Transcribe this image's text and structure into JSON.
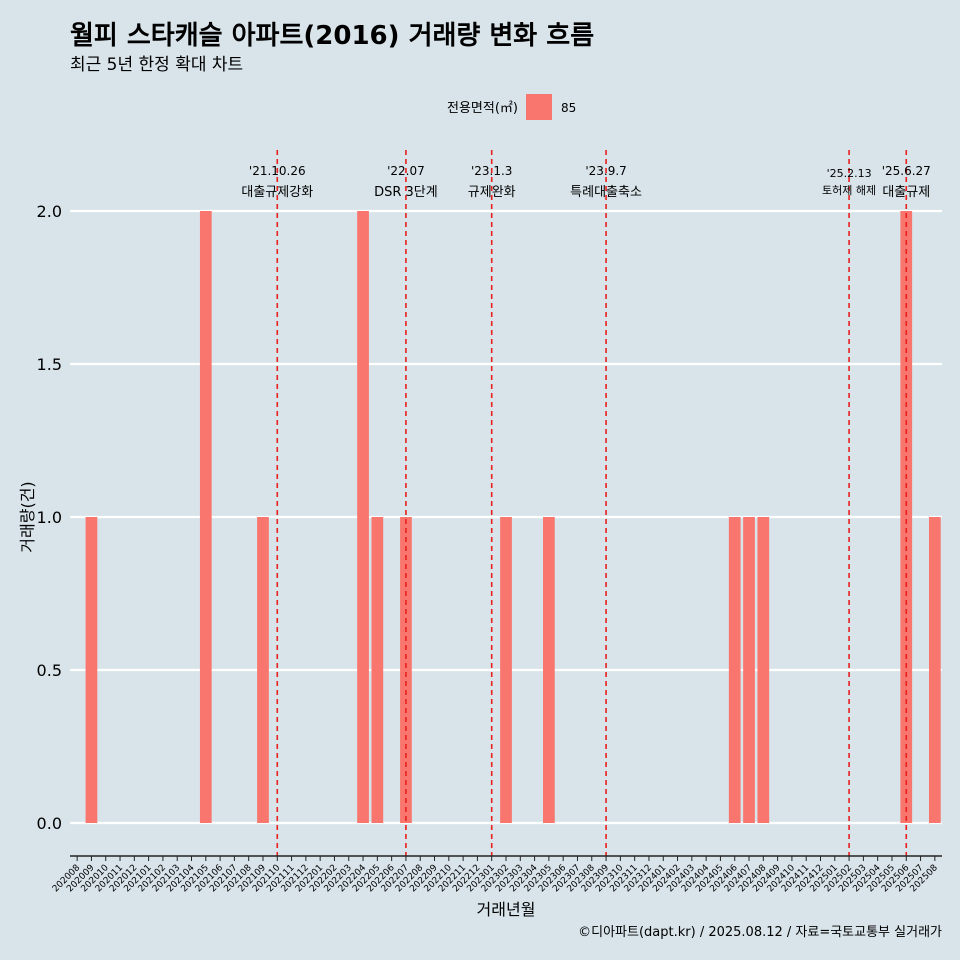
{
  "chart_data": {
    "type": "bar",
    "title": "월피 스타캐슬 아파트(2016) 거래량 변화 흐름",
    "subtitle": "최근 5년 한정 확대 차트",
    "xlabel": "거래년월",
    "ylabel": "거래량(건)",
    "caption": "©디아파트(dapt.kr) / 2025.08.12 / 자료=국토교통부 실거래가",
    "legend": {
      "title": "전용면적(㎡)",
      "items": [
        {
          "label": "85",
          "color": "#f8766d"
        }
      ],
      "position": "top"
    },
    "ylim": [
      0,
      2
    ],
    "yticks": [
      0,
      0.5,
      1,
      1.5,
      2
    ],
    "ytick_labels": [
      "0.0",
      "0.5",
      "1.0",
      "1.5",
      "2.0"
    ],
    "grid": true,
    "bar_color": "#f8766d",
    "event_line_color": "#e8201e",
    "categories": [
      "202008",
      "202009",
      "202010",
      "202011",
      "202012",
      "202101",
      "202102",
      "202103",
      "202104",
      "202105",
      "202106",
      "202107",
      "202108",
      "202109",
      "202110",
      "202111",
      "202112",
      "202201",
      "202202",
      "202203",
      "202204",
      "202205",
      "202206",
      "202207",
      "202208",
      "202209",
      "202210",
      "202211",
      "202212",
      "202301",
      "202302",
      "202303",
      "202304",
      "202305",
      "202306",
      "202307",
      "202308",
      "202309",
      "202310",
      "202311",
      "202312",
      "202401",
      "202402",
      "202403",
      "202404",
      "202405",
      "202406",
      "202407",
      "202408",
      "202409",
      "202410",
      "202411",
      "202412",
      "202501",
      "202502",
      "202503",
      "202504",
      "202505",
      "202506",
      "202507",
      "202508"
    ],
    "values": [
      0,
      1,
      0,
      0,
      0,
      0,
      0,
      0,
      0,
      2,
      0,
      0,
      0,
      1,
      0,
      0,
      0,
      0,
      0,
      0,
      2,
      1,
      0,
      1,
      0,
      0,
      0,
      0,
      0,
      0,
      1,
      0,
      0,
      1,
      0,
      0,
      0,
      0,
      0,
      0,
      0,
      0,
      0,
      0,
      0,
      0,
      1,
      1,
      1,
      0,
      0,
      0,
      0,
      0,
      0,
      0,
      0,
      0,
      2,
      0,
      1
    ],
    "events": [
      {
        "date": "'21.10.26",
        "label": "대출규제강화",
        "x": "202110"
      },
      {
        "date": "'22.07",
        "label": "DSR 3단계",
        "x": "202207"
      },
      {
        "date": "'23.1.3",
        "label": "규제완화",
        "x": "202301"
      },
      {
        "date": "'23.9.7",
        "label": "특례대출축소",
        "x": "202309"
      },
      {
        "date": "'25.2.13",
        "label": "토허제 해제",
        "x": "202502"
      },
      {
        "date": "'25.6.27",
        "label": "대출규제",
        "x": "202506"
      }
    ]
  }
}
